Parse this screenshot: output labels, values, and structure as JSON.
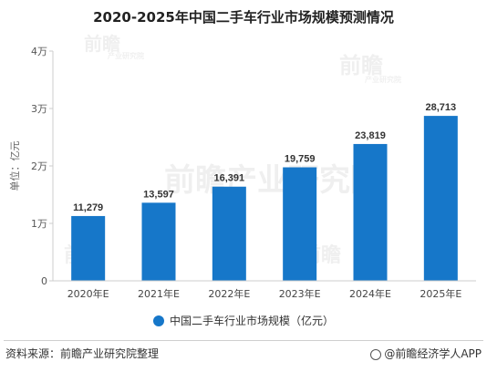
{
  "chart_data": {
    "type": "bar",
    "title": "2020-2025年中国二手车行业市场规模预测情况",
    "categories": [
      "2020年E",
      "2021年E",
      "2022年E",
      "2023年E",
      "2024年E",
      "2025年E"
    ],
    "series": [
      {
        "name": "中国二手车行业市场规模（亿元）",
        "values": [
          11279,
          13597,
          16391,
          19759,
          23819,
          28713
        ],
        "labels": [
          "11,279",
          "13,597",
          "16,391",
          "19,759",
          "23,819",
          "28,713"
        ]
      }
    ],
    "ylabel": "单位：亿元",
    "ylim": [
      0,
      40000
    ],
    "yticks": [
      0,
      10000,
      20000,
      30000,
      40000
    ],
    "ytick_labels": [
      "0",
      "1万",
      "2万",
      "3万",
      "4万"
    ],
    "grid": false,
    "legend_position": "bottom",
    "bar_color": "#1677c9"
  },
  "footer": {
    "source": "资料来源：前瞻产业研究院整理",
    "brand": "@前瞻经济学人APP"
  },
  "watermark": {
    "brand": "前瞻",
    "tagline": "产业研究院"
  }
}
